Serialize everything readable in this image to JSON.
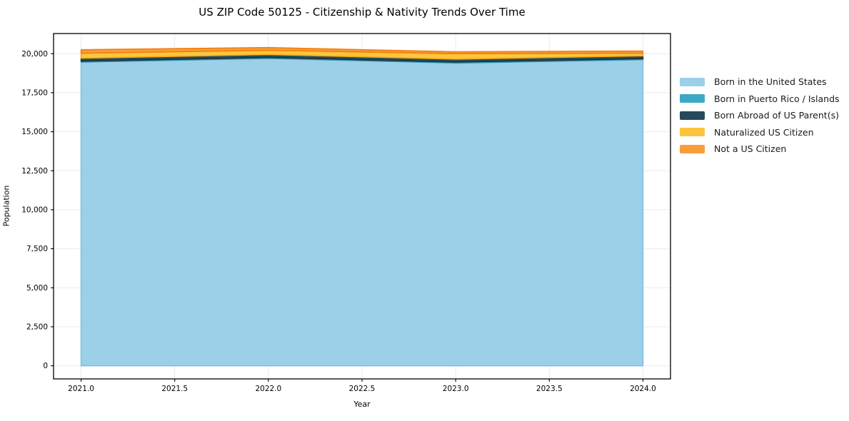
{
  "chart_data": {
    "type": "area",
    "stacked": true,
    "title": "US ZIP Code 50125 - Citizenship & Nativity Trends Over Time",
    "xlabel": "Year",
    "ylabel": "Population",
    "x": [
      2021,
      2022,
      2023,
      2024
    ],
    "series": [
      {
        "name": "Born in the United States",
        "values": [
          19460,
          19700,
          19400,
          19620
        ],
        "color": "#9BD0E8",
        "edge_color": "#7EC0DC"
      },
      {
        "name": "Born in Puerto Rico / Islands",
        "values": [
          60,
          60,
          60,
          60
        ],
        "color": "#3DA8C5",
        "edge_color": "#2E93AE"
      },
      {
        "name": "Born Abroad of US Parent(s)",
        "values": [
          190,
          180,
          190,
          180
        ],
        "color": "#27495B",
        "edge_color": "#1C3442"
      },
      {
        "name": "Naturalized US Citizen",
        "values": [
          320,
          280,
          350,
          170
        ],
        "color": "#FDC53D",
        "edge_color": "#F3A90E"
      },
      {
        "name": "Not a US Citizen",
        "values": [
          220,
          170,
          120,
          140
        ],
        "color": "#F99D3B",
        "edge_color": "#F07E0C"
      }
    ],
    "totals_by_year": [
      20250,
      20390,
      20120,
      20170
    ],
    "xlim": [
      2020.853,
      2024.147
    ],
    "ylim": [
      -840,
      21290
    ],
    "x_ticks": [
      2021.0,
      2021.5,
      2022.0,
      2022.5,
      2023.0,
      2023.5,
      2024.0
    ],
    "x_tick_labels": [
      "2021.0",
      "2021.5",
      "2022.0",
      "2022.5",
      "2023.0",
      "2023.5",
      "2024.0"
    ],
    "y_ticks": [
      0,
      2500,
      5000,
      7500,
      10000,
      12500,
      15000,
      17500,
      20000
    ],
    "y_tick_labels": [
      "0",
      "2,500",
      "5,000",
      "7,500",
      "10,000",
      "12,500",
      "15,000",
      "17,500",
      "20,000"
    ],
    "grid": true,
    "legend_position": "right",
    "colors": {
      "grid": "#ebebeb",
      "spine": "#000000",
      "tick": "#000000",
      "background": "#ffffff"
    }
  }
}
